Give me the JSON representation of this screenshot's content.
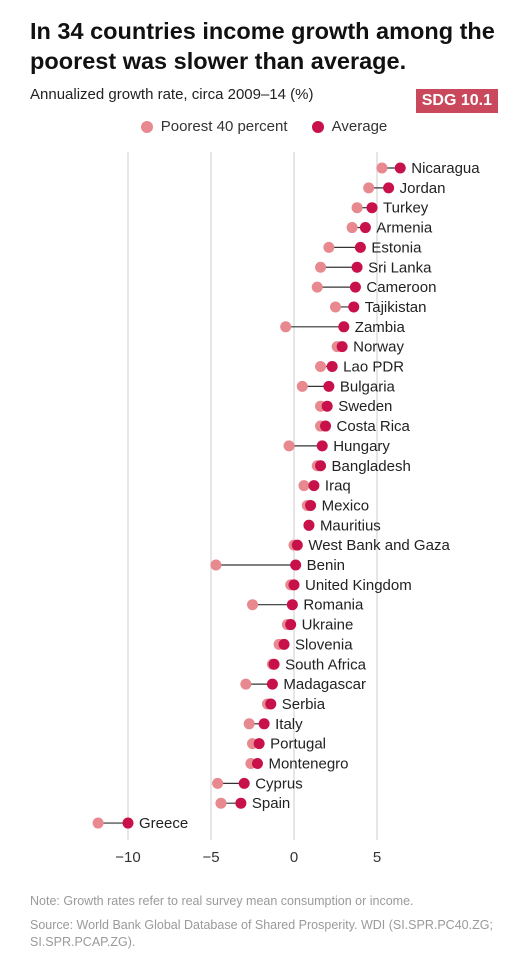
{
  "title": "In 34 countries income growth among the poorest was slower than average.",
  "subtitle": "Annualized growth rate, circa 2009–14 (%)",
  "badge": "SDG 10.1",
  "colors": {
    "poorest": "#e8888f",
    "average": "#c8104a",
    "grid": "#dddddd",
    "connector": "#333333",
    "badge": "#c9485b"
  },
  "legend": [
    {
      "label": "Poorest 40 percent",
      "color": "#e8888f"
    },
    {
      "label": "Average",
      "color": "#c8104a"
    }
  ],
  "chart_data": {
    "type": "scatter",
    "xlim": [
      -12,
      6.5
    ],
    "xticks": [
      -10,
      -5,
      0,
      5
    ],
    "xtick_labels": [
      "−10",
      "−5",
      "0",
      "5"
    ],
    "grid": true,
    "legend_position": "top",
    "series": [
      {
        "name": "Poorest 40 percent",
        "key": "poorest"
      },
      {
        "name": "Average",
        "key": "average"
      }
    ],
    "countries": [
      {
        "name": "Nicaragua",
        "poorest": 5.3,
        "average": 6.4
      },
      {
        "name": "Jordan",
        "poorest": 4.5,
        "average": 5.7
      },
      {
        "name": "Turkey",
        "poorest": 3.8,
        "average": 4.7
      },
      {
        "name": "Armenia",
        "poorest": 3.5,
        "average": 4.3
      },
      {
        "name": "Estonia",
        "poorest": 2.1,
        "average": 4.0
      },
      {
        "name": "Sri Lanka",
        "poorest": 1.6,
        "average": 3.8
      },
      {
        "name": "Cameroon",
        "poorest": 1.4,
        "average": 3.7
      },
      {
        "name": "Tajikistan",
        "poorest": 2.5,
        "average": 3.6
      },
      {
        "name": "Zambia",
        "poorest": -0.5,
        "average": 3.0
      },
      {
        "name": "Norway",
        "poorest": 2.6,
        "average": 2.9
      },
      {
        "name": "Lao PDR",
        "poorest": 1.6,
        "average": 2.3
      },
      {
        "name": "Bulgaria",
        "poorest": 0.5,
        "average": 2.1
      },
      {
        "name": "Sweden",
        "poorest": 1.6,
        "average": 2.0
      },
      {
        "name": "Costa Rica",
        "poorest": 1.6,
        "average": 1.9
      },
      {
        "name": "Hungary",
        "poorest": -0.3,
        "average": 1.7
      },
      {
        "name": "Bangladesh",
        "poorest": 1.4,
        "average": 1.6
      },
      {
        "name": "Iraq",
        "poorest": 0.6,
        "average": 1.2
      },
      {
        "name": "Mexico",
        "poorest": 0.8,
        "average": 1.0
      },
      {
        "name": "Mauritius",
        "poorest": 0.9,
        "average": 0.9
      },
      {
        "name": "West Bank and Gaza",
        "poorest": 0.0,
        "average": 0.2
      },
      {
        "name": "Benin",
        "poorest": -4.7,
        "average": 0.1
      },
      {
        "name": "United Kingdom",
        "poorest": -0.2,
        "average": 0.0
      },
      {
        "name": "Romania",
        "poorest": -2.5,
        "average": -0.1
      },
      {
        "name": "Ukraine",
        "poorest": -0.4,
        "average": -0.2
      },
      {
        "name": "Slovenia",
        "poorest": -0.9,
        "average": -0.6
      },
      {
        "name": "South Africa",
        "poorest": -1.3,
        "average": -1.2
      },
      {
        "name": "Madagascar",
        "poorest": -2.9,
        "average": -1.3
      },
      {
        "name": "Serbia",
        "poorest": -1.6,
        "average": -1.4
      },
      {
        "name": "Italy",
        "poorest": -2.7,
        "average": -1.8
      },
      {
        "name": "Portugal",
        "poorest": -2.5,
        "average": -2.1
      },
      {
        "name": "Montenegro",
        "poorest": -2.6,
        "average": -2.2
      },
      {
        "name": "Cyprus",
        "poorest": -4.6,
        "average": -3.0
      },
      {
        "name": "Spain",
        "poorest": -4.4,
        "average": -3.2
      },
      {
        "name": "Greece",
        "poorest": -11.8,
        "average": -10.0
      }
    ]
  },
  "notes": {
    "note": "Note: Growth rates refer to real survey mean consumption or income.",
    "source": "Source: World Bank Global Database of Shared Prosperity. WDI (SI.SPR.PC40.ZG; SI.SPR.PCAP.ZG)."
  }
}
